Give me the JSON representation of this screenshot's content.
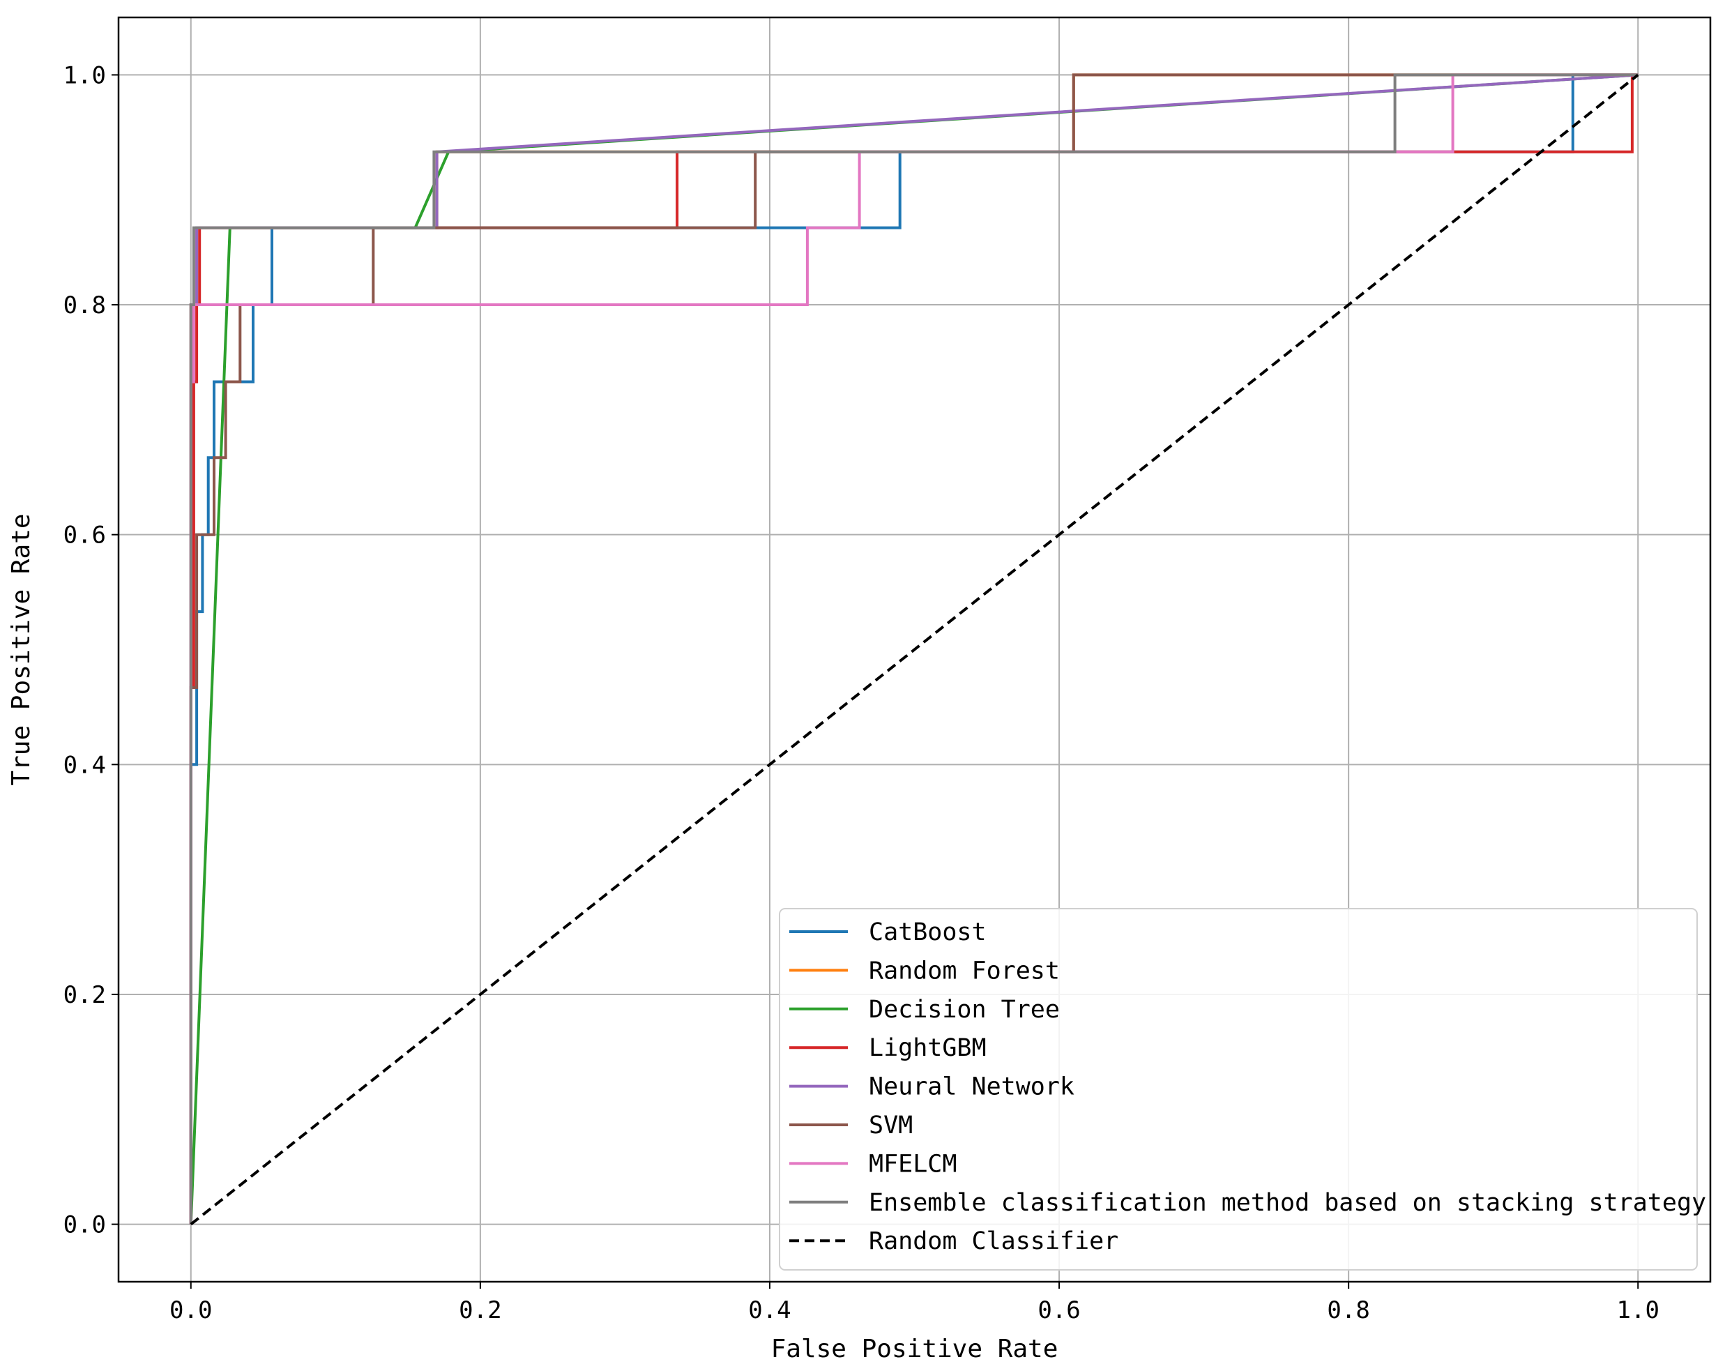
{
  "chart_data": {
    "type": "line",
    "title": "",
    "xlabel": "False Positive Rate",
    "ylabel": "True Positive Rate",
    "xlim": [
      -0.05,
      1.05
    ],
    "ylim": [
      -0.05,
      1.05
    ],
    "xticks": [
      "0.0",
      "0.2",
      "0.4",
      "0.6",
      "0.8",
      "1.0"
    ],
    "yticks": [
      "0.0",
      "0.2",
      "0.4",
      "0.6",
      "0.8",
      "1.0"
    ],
    "grid": true,
    "legend_position": "lower-right",
    "series": [
      {
        "name": "CatBoost",
        "color": "#1f77b4",
        "dash": "",
        "x": [
          0,
          0,
          0.004,
          0.004,
          0.008,
          0.008,
          0.012,
          0.012,
          0.016,
          0.016,
          0.024,
          0.024,
          0.031,
          0.031,
          0.043,
          0.043,
          0.056,
          0.056,
          0.39,
          0.39,
          0.49,
          0.49,
          0.955,
          0.955,
          1.0
        ],
        "y": [
          0,
          0.4,
          0.4,
          0.533,
          0.533,
          0.6,
          0.6,
          0.667,
          0.667,
          0.733,
          0.733,
          0.733,
          0.733,
          0.733,
          0.733,
          0.8,
          0.8,
          0.867,
          0.867,
          0.867,
          0.867,
          0.933,
          0.933,
          1.0,
          1.0
        ]
      },
      {
        "name": "Random Forest",
        "color": "#ff7f0e",
        "dash": "",
        "x": [
          0,
          0,
          0.0,
          0.0,
          0.004,
          0.004,
          0.17,
          0.17,
          0.61,
          0.61,
          0.734,
          0.734,
          1.0
        ],
        "y": [
          0,
          0.733,
          0.733,
          0.8,
          0.8,
          0.867,
          0.867,
          0.933,
          0.933,
          1.0,
          1.0,
          1.0,
          1.0
        ]
      },
      {
        "name": "Decision Tree",
        "color": "#2ca02c",
        "dash": "",
        "x": [
          0,
          0.027,
          0.155,
          0.178,
          1.0
        ],
        "y": [
          0,
          0.867,
          0.867,
          0.933,
          1.0
        ]
      },
      {
        "name": "LightGBM",
        "color": "#d62728",
        "dash": "",
        "x": [
          0,
          0,
          0.002,
          0.002,
          0.004,
          0.004,
          0.006,
          0.006,
          0.014,
          0.014,
          0.336,
          0.336,
          0.87,
          0.87,
          0.996,
          0.996,
          1.0
        ],
        "y": [
          0,
          0.467,
          0.467,
          0.733,
          0.733,
          0.8,
          0.8,
          0.867,
          0.867,
          0.867,
          0.867,
          0.933,
          0.933,
          0.933,
          0.933,
          1.0,
          1.0
        ]
      },
      {
        "name": "Neural Network",
        "color": "#9467bd",
        "dash": "",
        "x": [
          0,
          0,
          0.004,
          0.004,
          0.17,
          0.17,
          1.0
        ],
        "y": [
          0,
          0.8,
          0.8,
          0.867,
          0.867,
          0.933,
          1.0
        ]
      },
      {
        "name": "SVM",
        "color": "#8c564b",
        "dash": "",
        "x": [
          0,
          0,
          0.004,
          0.004,
          0.016,
          0.016,
          0.024,
          0.024,
          0.034,
          0.034,
          0.126,
          0.126,
          0.39,
          0.39,
          0.61,
          0.61,
          1.0
        ],
        "y": [
          0,
          0.467,
          0.467,
          0.6,
          0.6,
          0.667,
          0.667,
          0.733,
          0.733,
          0.8,
          0.8,
          0.867,
          0.867,
          0.933,
          0.933,
          1.0,
          1.0
        ]
      },
      {
        "name": "MFELCM",
        "color": "#e377c2",
        "dash": "",
        "x": [
          0,
          0,
          0.002,
          0.002,
          0.004,
          0.004,
          0.426,
          0.426,
          0.462,
          0.462,
          0.872,
          0.872,
          1.0
        ],
        "y": [
          0,
          0.733,
          0.733,
          0.8,
          0.8,
          0.8,
          0.8,
          0.867,
          0.867,
          0.933,
          0.933,
          1.0,
          1.0
        ]
      },
      {
        "name": "Ensemble classification method based on stacking strategy",
        "color": "#7f7f7f",
        "dash": "",
        "x": [
          0,
          0,
          0.002,
          0.002,
          0.168,
          0.168,
          0.832,
          0.832,
          1.0
        ],
        "y": [
          0,
          0.8,
          0.8,
          0.867,
          0.867,
          0.933,
          0.933,
          1.0,
          1.0
        ]
      },
      {
        "name": "Random Classifier",
        "color": "#000000",
        "dash": "14,8",
        "x": [
          0,
          1
        ],
        "y": [
          0,
          1
        ]
      }
    ]
  }
}
